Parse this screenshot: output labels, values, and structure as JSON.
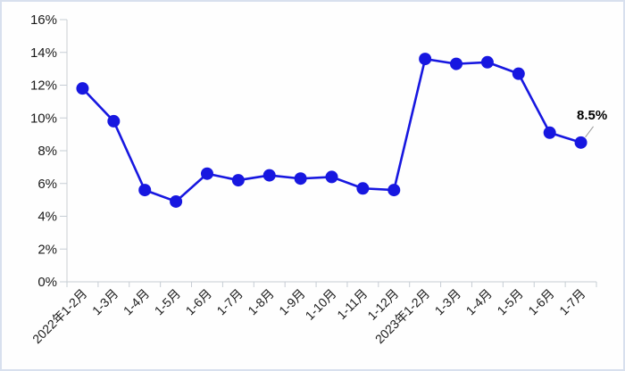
{
  "chart_data": {
    "type": "line",
    "title": "",
    "xlabel": "",
    "ylabel": "",
    "unit": "%",
    "categories": [
      "2022年1-2月",
      "1-3月",
      "1-4月",
      "1-5月",
      "1-6月",
      "1-7月",
      "1-8月",
      "1-9月",
      "1-10月",
      "1-11月",
      "1-12月",
      "2023年1-2月",
      "1-3月",
      "1-4月",
      "1-5月",
      "1-6月",
      "1-7月"
    ],
    "values": [
      11.8,
      9.8,
      5.6,
      4.9,
      6.6,
      6.2,
      6.5,
      6.3,
      6.4,
      5.7,
      5.6,
      13.6,
      13.3,
      13.4,
      12.7,
      9.1,
      8.5
    ],
    "ylim": [
      0,
      16
    ],
    "y_tick_labels": [
      "0%",
      "2%",
      "4%",
      "6%",
      "8%",
      "10%",
      "12%",
      "14%",
      "16%"
    ],
    "grid": false,
    "legend": "none",
    "marker": "circle",
    "annotation": {
      "text": "8.5%",
      "point_index": 16
    }
  },
  "colors": {
    "line": "#1717e0",
    "marker": "#1717e0",
    "axis": "#d2d6da",
    "tick": "#c6cdd4",
    "label_text": "#1a1a1a",
    "annotation_text": "#000000",
    "leader_line": "#999999",
    "background": "#fefefe",
    "border": "#d8e0ee"
  }
}
